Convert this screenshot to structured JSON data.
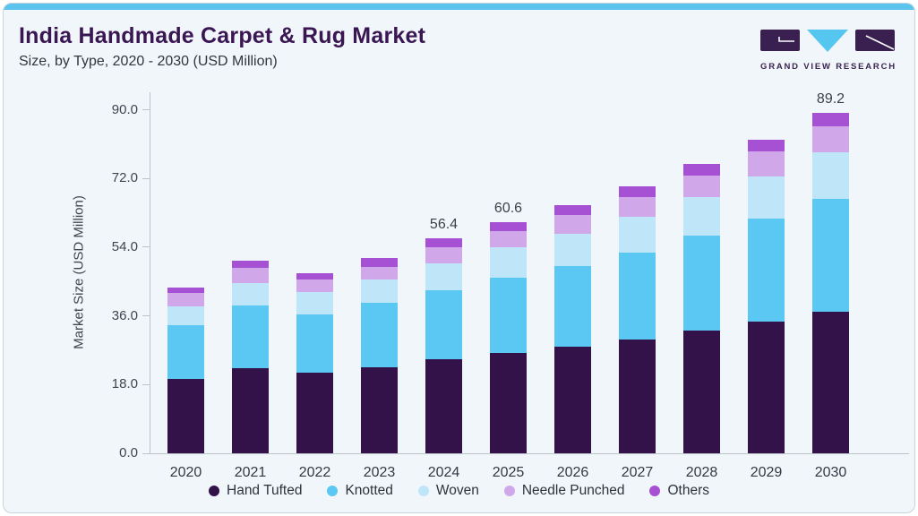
{
  "header": {
    "title": "India Handmade Carpet & Rug Market",
    "subtitle": "Size, by Type, 2020 - 2030 (USD Million)"
  },
  "logo": {
    "brand": "GRAND VIEW RESEARCH",
    "rect_color": "#3a2050",
    "triangle_color": "#55c6f0"
  },
  "chart_data": {
    "type": "bar",
    "stacked": true,
    "title": "India Handmade Carpet & Rug Market",
    "subtitle": "Size, by Type, 2020 - 2030 (USD Million)",
    "xlabel": "",
    "ylabel": "Market Size (USD Million)",
    "yticks": [
      0.0,
      18.0,
      36.0,
      54.0,
      72.0,
      90.0
    ],
    "ylim": [
      0,
      94
    ],
    "grid": false,
    "legend_position": "bottom",
    "categories": [
      "2020",
      "2021",
      "2022",
      "2023",
      "2024",
      "2025",
      "2026",
      "2027",
      "2028",
      "2029",
      "2030"
    ],
    "series": [
      {
        "name": "Hand Tufted",
        "color": "#331149",
        "values": [
          19.6,
          22.4,
          21.1,
          22.6,
          24.6,
          26.2,
          28.0,
          29.8,
          32.2,
          34.6,
          37.1
        ]
      },
      {
        "name": "Knotted",
        "color": "#5bc7f3",
        "values": [
          14.0,
          16.4,
          15.3,
          16.8,
          18.2,
          19.8,
          21.1,
          22.8,
          24.9,
          26.9,
          29.5
        ]
      },
      {
        "name": "Woven",
        "color": "#bfe5f8",
        "values": [
          4.9,
          5.9,
          5.9,
          6.1,
          7.0,
          8.0,
          8.5,
          9.4,
          10.0,
          11.1,
          12.3
        ]
      },
      {
        "name": "Needle Punched",
        "color": "#d0a8ea",
        "values": [
          3.5,
          4.0,
          3.3,
          3.4,
          4.1,
          4.3,
          4.9,
          5.1,
          5.7,
          6.5,
          6.9
        ]
      },
      {
        "name": "Others",
        "color": "#a650d4",
        "values": [
          1.4,
          1.7,
          1.7,
          2.3,
          2.5,
          2.3,
          2.6,
          3.0,
          2.9,
          3.1,
          3.4
        ]
      }
    ],
    "bar_total_labels": [
      "",
      "",
      "",
      "",
      "56.4",
      "60.6",
      "",
      "",
      "",
      "",
      "89.2"
    ],
    "labeled_totals": {
      "2024": 56.4,
      "2025": 60.6,
      "2030": 89.2
    }
  },
  "colors": {
    "card_background": "#f1f6fa",
    "top_accent_bar": "#5bc4ee",
    "title_text": "#3a1653",
    "axis_line": "#bcc3cb",
    "tick_text": "#3f4450"
  }
}
